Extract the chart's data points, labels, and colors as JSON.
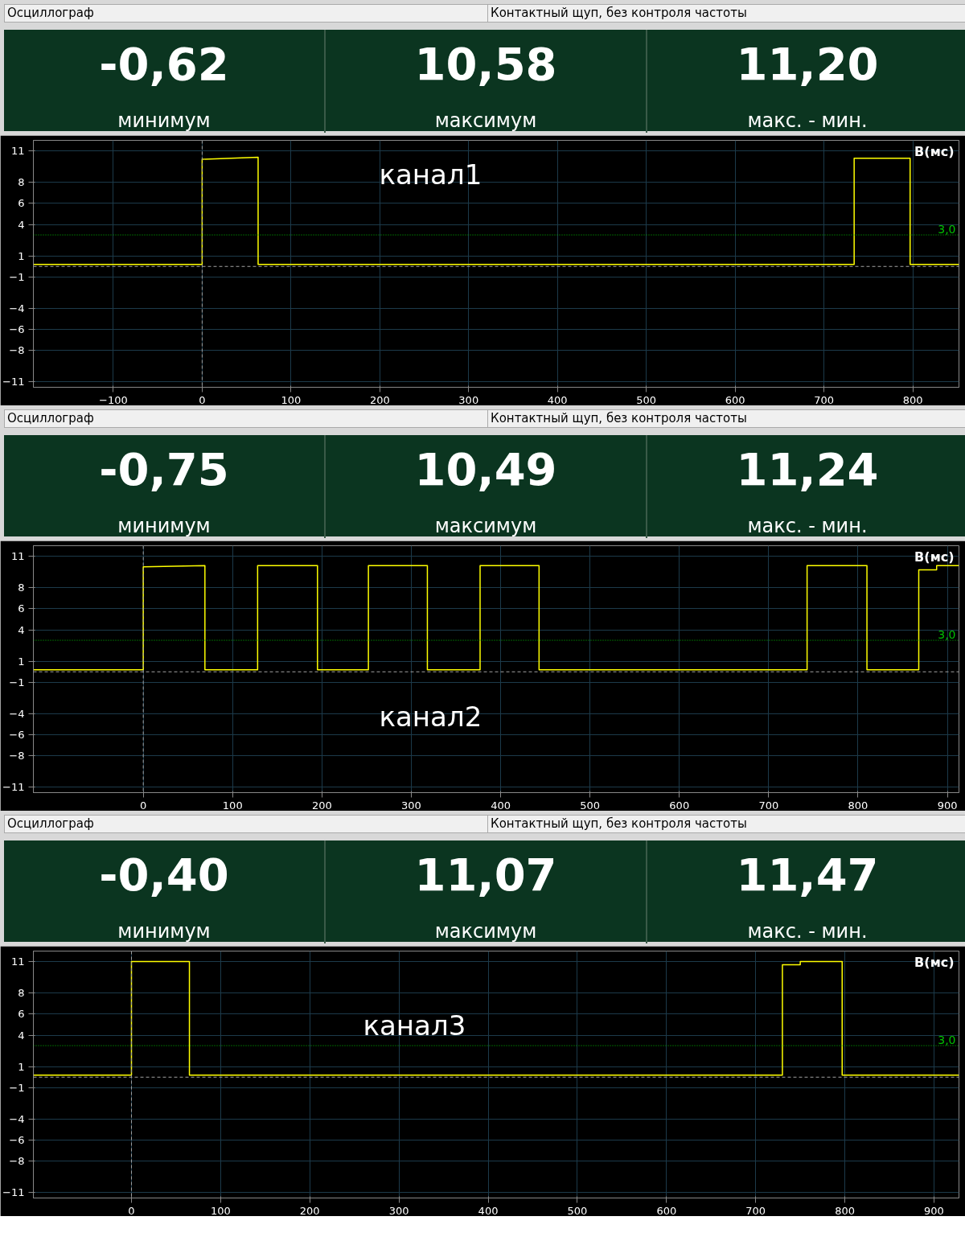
{
  "chart_data": [
    {
      "type": "line",
      "title": "Осциллограф",
      "subtitle": "Контактный щуп, без контроля частоты",
      "ylabel": "В(мс)",
      "annotations": [
        "-0,62",
        "минимум",
        "10,58",
        "максимум",
        "11,20",
        "макс. - мин.",
        "канал1"
      ],
      "x": [
        -190,
        0,
        0,
        63,
        63,
        734,
        734,
        797,
        797,
        852
      ],
      "series": [
        {
          "color": "#ffff00",
          "values": [
            0.2,
            0.2,
            10.2,
            10.4,
            0.2,
            0.2,
            10.3,
            10.3,
            0.2,
            0.2
          ]
        }
      ],
      "xlim": [
        -190,
        852
      ],
      "xticks": [
        -100,
        0,
        100,
        200,
        300,
        400,
        500,
        600,
        700,
        800
      ],
      "ylim": [
        -11.5,
        12
      ],
      "yticks": [
        11,
        8,
        6,
        4,
        1,
        -1,
        -4,
        -6,
        -8,
        -11
      ],
      "grid": true,
      "line_style": "solid",
      "marker": "none",
      "ref_lines": [
        {
          "axis": "y",
          "value": 3.0,
          "label": "3,0",
          "color": "#00c000",
          "line_style": "dotted"
        },
        {
          "axis": "y",
          "value": 0,
          "label": null,
          "color": "#a0a0a0",
          "line_style": "dashed"
        },
        {
          "axis": "x",
          "value": 0,
          "label": null,
          "color": "#a0a0a0",
          "line_style": "dashed"
        }
      ]
    },
    {
      "type": "line",
      "title": "Осциллограф",
      "subtitle": "Контактный щуп, без контроля частоты",
      "ylabel": "В(мс)",
      "annotations": [
        "-0,75",
        "минимум",
        "10,49",
        "максимум",
        "11,24",
        "макс. - мин.",
        "канал2"
      ],
      "x": [
        -123,
        0,
        0,
        69,
        69,
        128,
        128,
        195,
        195,
        252,
        252,
        318,
        318,
        377,
        377,
        443,
        443,
        743,
        743,
        810,
        810,
        868,
        868,
        888,
        888,
        913
      ],
      "series": [
        {
          "color": "#ffff00",
          "values": [
            0.2,
            0.2,
            10.0,
            10.1,
            0.2,
            0.2,
            10.1,
            10.1,
            0.2,
            0.2,
            10.1,
            10.1,
            0.2,
            0.2,
            10.1,
            10.1,
            0.2,
            0.2,
            10.1,
            10.1,
            0.2,
            0.2,
            9.7,
            9.7,
            10.1,
            10.1
          ]
        }
      ],
      "xlim": [
        -123,
        913
      ],
      "xticks": [
        0,
        100,
        200,
        300,
        400,
        500,
        600,
        700,
        800,
        900
      ],
      "ylim": [
        -11.5,
        12
      ],
      "yticks": [
        11,
        8,
        6,
        4,
        1,
        -1,
        -4,
        -6,
        -8,
        -11
      ],
      "grid": true,
      "line_style": "solid",
      "marker": "none",
      "ref_lines": [
        {
          "axis": "y",
          "value": 3.0,
          "label": "3,0",
          "color": "#00c000",
          "line_style": "dotted"
        },
        {
          "axis": "y",
          "value": 0,
          "label": null,
          "color": "#a0a0a0",
          "line_style": "dashed"
        },
        {
          "axis": "x",
          "value": 0,
          "label": null,
          "color": "#a0a0a0",
          "line_style": "dashed"
        }
      ]
    },
    {
      "type": "line",
      "title": "Осциллограф",
      "subtitle": "Контактный щуп, без контроля частоты",
      "ylabel": "В(мс)",
      "annotations": [
        "-0,40",
        "минимум",
        "11,07",
        "максимум",
        "11,47",
        "макс. - мин.",
        "канал3"
      ],
      "x": [
        -110,
        0,
        0,
        65,
        65,
        730,
        730,
        750,
        750,
        797,
        797,
        928
      ],
      "series": [
        {
          "color": "#ffff00",
          "values": [
            0.2,
            0.2,
            11.0,
            11.0,
            0.2,
            0.2,
            10.7,
            10.7,
            11.0,
            11.0,
            0.2,
            0.2
          ]
        }
      ],
      "xlim": [
        -110,
        928
      ],
      "xticks": [
        0,
        100,
        200,
        300,
        400,
        500,
        600,
        700,
        800,
        900
      ],
      "ylim": [
        -11.5,
        12
      ],
      "yticks": [
        11,
        8,
        6,
        4,
        1,
        -1,
        -4,
        -6,
        -8,
        -11
      ],
      "grid": true,
      "line_style": "solid",
      "marker": "none",
      "ref_lines": [
        {
          "axis": "y",
          "value": 3.0,
          "label": "3,0",
          "color": "#00c000",
          "line_style": "dotted"
        },
        {
          "axis": "y",
          "value": 0,
          "label": null,
          "color": "#a0a0a0",
          "line_style": "dashed"
        },
        {
          "axis": "x",
          "value": 0,
          "label": null,
          "color": "#a0a0a0",
          "line_style": "dashed"
        }
      ]
    }
  ]
}
